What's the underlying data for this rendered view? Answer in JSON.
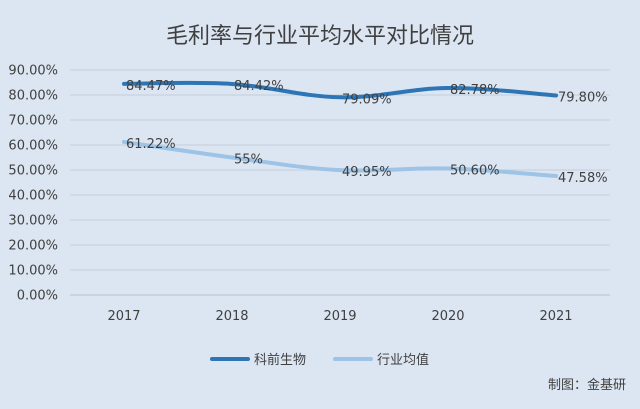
{
  "chart_data": {
    "type": "line",
    "title": "毛利率与行业平均水平对比情况",
    "xlabel": "",
    "ylabel": "",
    "categories": [
      "2017",
      "2018",
      "2019",
      "2020",
      "2021"
    ],
    "ylim": [
      0,
      90
    ],
    "yticks": [
      "0.00%",
      "10.00%",
      "20.00%",
      "30.00%",
      "40.00%",
      "50.00%",
      "60.00%",
      "70.00%",
      "80.00%",
      "90.00%"
    ],
    "grid": true,
    "legend": "bottom",
    "series": [
      {
        "name": "科前生物",
        "values": [
          84.47,
          84.42,
          79.09,
          82.78,
          79.8
        ],
        "labels": [
          "84.47%",
          "84.42%",
          "79.09%",
          "82.78%",
          "79.80%"
        ],
        "color": "#2e75b6"
      },
      {
        "name": "行业均值",
        "values": [
          61.22,
          55,
          49.95,
          50.6,
          47.58
        ],
        "labels": [
          "61.22%",
          "55%",
          "49.95%",
          "50.60%",
          "47.58%"
        ],
        "color": "#9dc3e6"
      }
    ]
  },
  "watermark": "制图：金基研",
  "colors": {
    "background": "#dce6f2",
    "grid": "#c5cfdb",
    "axis_text": "#404040"
  }
}
